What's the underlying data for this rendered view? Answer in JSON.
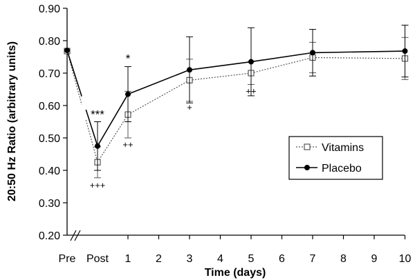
{
  "chart_data": {
    "type": "line",
    "xlabel": "Time (days)",
    "ylabel": "20:50 Hz Ratio (arbitrary units)",
    "ylim": [
      0.2,
      0.9
    ],
    "yticks": [
      "0.20",
      "0.30",
      "0.40",
      "0.50",
      "0.60",
      "0.70",
      "0.80",
      "0.90"
    ],
    "x_categories": [
      "Pre",
      "Post",
      "1",
      "2",
      "3",
      "4",
      "5",
      "6",
      "7",
      "8",
      "9",
      "10"
    ],
    "axis_break": true,
    "grid": false,
    "legend_position": "right",
    "series": [
      {
        "name": "Placebo",
        "marker": "filled-circle",
        "line": "solid",
        "color": "#000000",
        "points": [
          {
            "x": "Pre",
            "y": 0.77
          },
          {
            "x": "Post",
            "y": 0.475,
            "err": 0.075
          },
          {
            "x": "1",
            "y": 0.635,
            "err": 0.085
          },
          {
            "x": "3",
            "y": 0.71,
            "err": 0.102
          },
          {
            "x": "5",
            "y": 0.735,
            "err": 0.105
          },
          {
            "x": "7",
            "y": 0.763,
            "err": 0.072
          },
          {
            "x": "10",
            "y": 0.768,
            "err": 0.08
          }
        ]
      },
      {
        "name": "Vitamins",
        "marker": "open-square",
        "line": "dotted",
        "color": "#555555",
        "points": [
          {
            "x": "Pre",
            "y": 0.768
          },
          {
            "x": "Post",
            "y": 0.425,
            "err": 0.048
          },
          {
            "x": "1",
            "y": 0.572,
            "err": 0.072
          },
          {
            "x": "3",
            "y": 0.678,
            "err": 0.065
          },
          {
            "x": "5",
            "y": 0.7,
            "err": 0.035
          },
          {
            "x": "7",
            "y": 0.748,
            "err": 0.047
          },
          {
            "x": "10",
            "y": 0.745,
            "err": 0.065
          }
        ]
      }
    ],
    "annotations": [
      {
        "x": "Post",
        "y": 0.552,
        "text": "***",
        "position": "above"
      },
      {
        "x": "1",
        "y": 0.725,
        "text": "*",
        "position": "above"
      },
      {
        "x": "Post",
        "y": 0.375,
        "text": "+++",
        "position": "below"
      },
      {
        "x": "1",
        "y": 0.5,
        "text": "++",
        "position": "below"
      },
      {
        "x": "3",
        "y": 0.615,
        "text": "+",
        "position": "below"
      },
      {
        "x": "5",
        "y": 0.665,
        "text": "++",
        "position": "below"
      }
    ]
  }
}
